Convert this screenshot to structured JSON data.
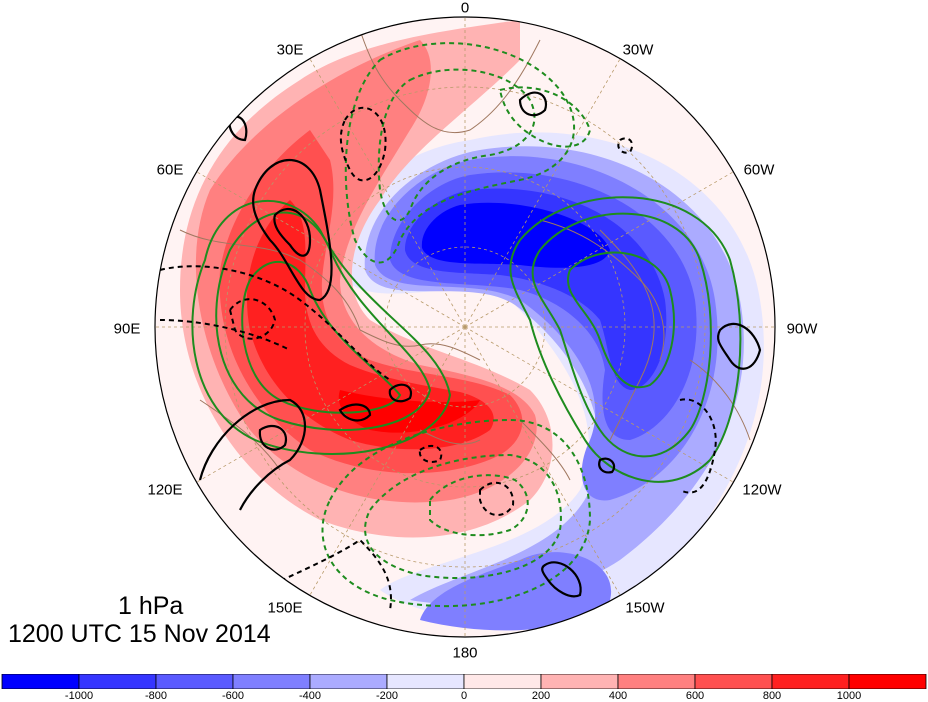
{
  "map": {
    "projection": "north-polar-stereographic",
    "level_label": "1 hPa",
    "time_label": "1200 UTC 15 Nov 2014",
    "longitude_labels": [
      {
        "id": "lon-0",
        "text": "0"
      },
      {
        "id": "lon-30w",
        "text": "30W"
      },
      {
        "id": "lon-60w",
        "text": "60W"
      },
      {
        "id": "lon-90w",
        "text": "90W"
      },
      {
        "id": "lon-120w",
        "text": "120W"
      },
      {
        "id": "lon-150w",
        "text": "150W"
      },
      {
        "id": "lon-180",
        "text": "180"
      },
      {
        "id": "lon-150e",
        "text": "150E"
      },
      {
        "id": "lon-120e",
        "text": "120E"
      },
      {
        "id": "lon-90e",
        "text": "90E"
      },
      {
        "id": "lon-60e",
        "text": "60E"
      },
      {
        "id": "lon-30e",
        "text": "30E"
      }
    ],
    "colors": {
      "shading_positive_max": "#ff0000",
      "shading_negative_max": "#0000ff",
      "contour_black": "#000000",
      "contour_green": "#1e8c1e",
      "coastline": "#a07860",
      "graticule": "#b89a6a"
    }
  },
  "colorbar": {
    "ticks": [
      "-1000",
      "-800",
      "-600",
      "-400",
      "-200",
      "0",
      "200",
      "400",
      "600",
      "800",
      "1000"
    ],
    "colors": [
      "#0000ff",
      "#3535ff",
      "#5a5aff",
      "#7f7fff",
      "#ababff",
      "#e6e6ff",
      "#ffe8e8",
      "#ffb3b3",
      "#ff8080",
      "#ff5050",
      "#ff2020",
      "#ff0000"
    ]
  }
}
